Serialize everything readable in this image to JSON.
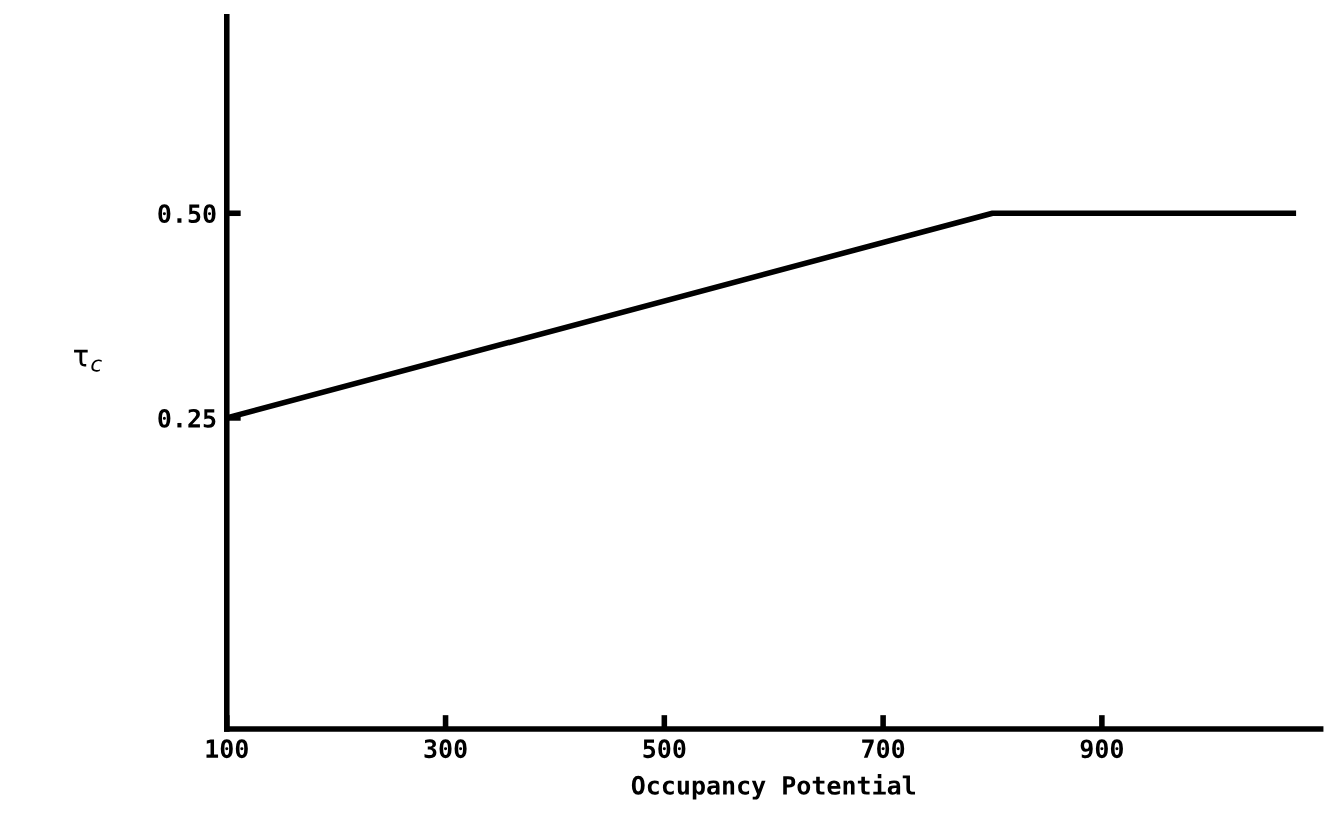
{
  "chart_data": {
    "type": "line",
    "xlabel": "Occupancy Potential",
    "ylabel": "τ$_{c}$",
    "x": [
      100,
      800,
      1075
    ],
    "series": [
      {
        "color": "#000000",
        "values": [
          0.25,
          0.5,
          0.5
        ]
      }
    ],
    "xlim": [
      100,
      1100
    ],
    "xticks": [
      100,
      300,
      500,
      700,
      900
    ],
    "ylim": [
      -0.13,
      0.74
    ],
    "yticks": [
      0.25,
      {
        "value": 0.5,
        "label": "0.50"
      }
    ],
    "grid": false,
    "legend": false,
    "marker": "none",
    "line_style": "solid"
  }
}
